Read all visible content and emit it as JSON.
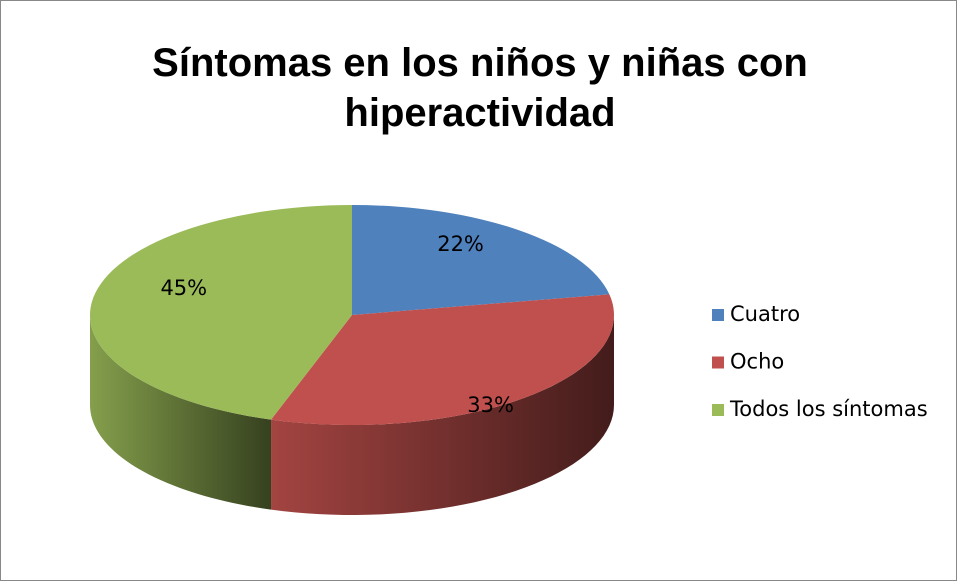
{
  "chart_data": {
    "type": "pie3d",
    "title": "Síntomas en los niños y niñas con hiperactividad",
    "categories": [
      "Cuatro",
      "Ocho",
      "Todos los síntomas"
    ],
    "values": [
      22,
      33,
      45
    ],
    "value_labels": [
      "22%",
      "33%",
      "45%"
    ],
    "colors": [
      "#4f81bd",
      "#c0504d",
      "#9bbb59"
    ],
    "legend": "right"
  }
}
